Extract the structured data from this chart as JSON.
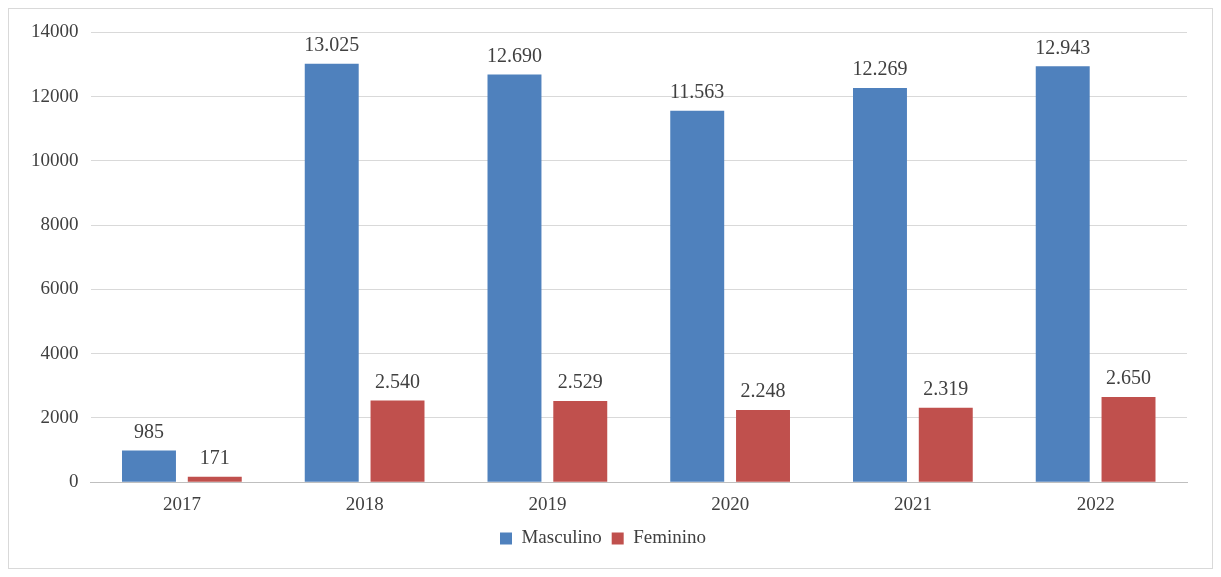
{
  "chart_data": {
    "type": "bar",
    "categories": [
      "2017",
      "2018",
      "2019",
      "2020",
      "2021",
      "2022"
    ],
    "series": [
      {
        "name": "Masculino",
        "color": "#4f81bd",
        "values": [
          985,
          13025,
          12690,
          11563,
          12269,
          12943
        ],
        "value_labels": [
          "985",
          "13.025",
          "12.690",
          "11.563",
          "12.269",
          "12.943"
        ]
      },
      {
        "name": "Feminino",
        "color": "#c0504d",
        "values": [
          171,
          2540,
          2529,
          2248,
          2319,
          2650
        ],
        "value_labels": [
          "171",
          "2.540",
          "2.529",
          "2.248",
          "2.319",
          "2.650"
        ]
      }
    ],
    "ylim": [
      0,
      14000
    ],
    "yticks": [
      0,
      2000,
      4000,
      6000,
      8000,
      10000,
      12000,
      14000
    ],
    "grid": "y",
    "legend": "bottom"
  }
}
